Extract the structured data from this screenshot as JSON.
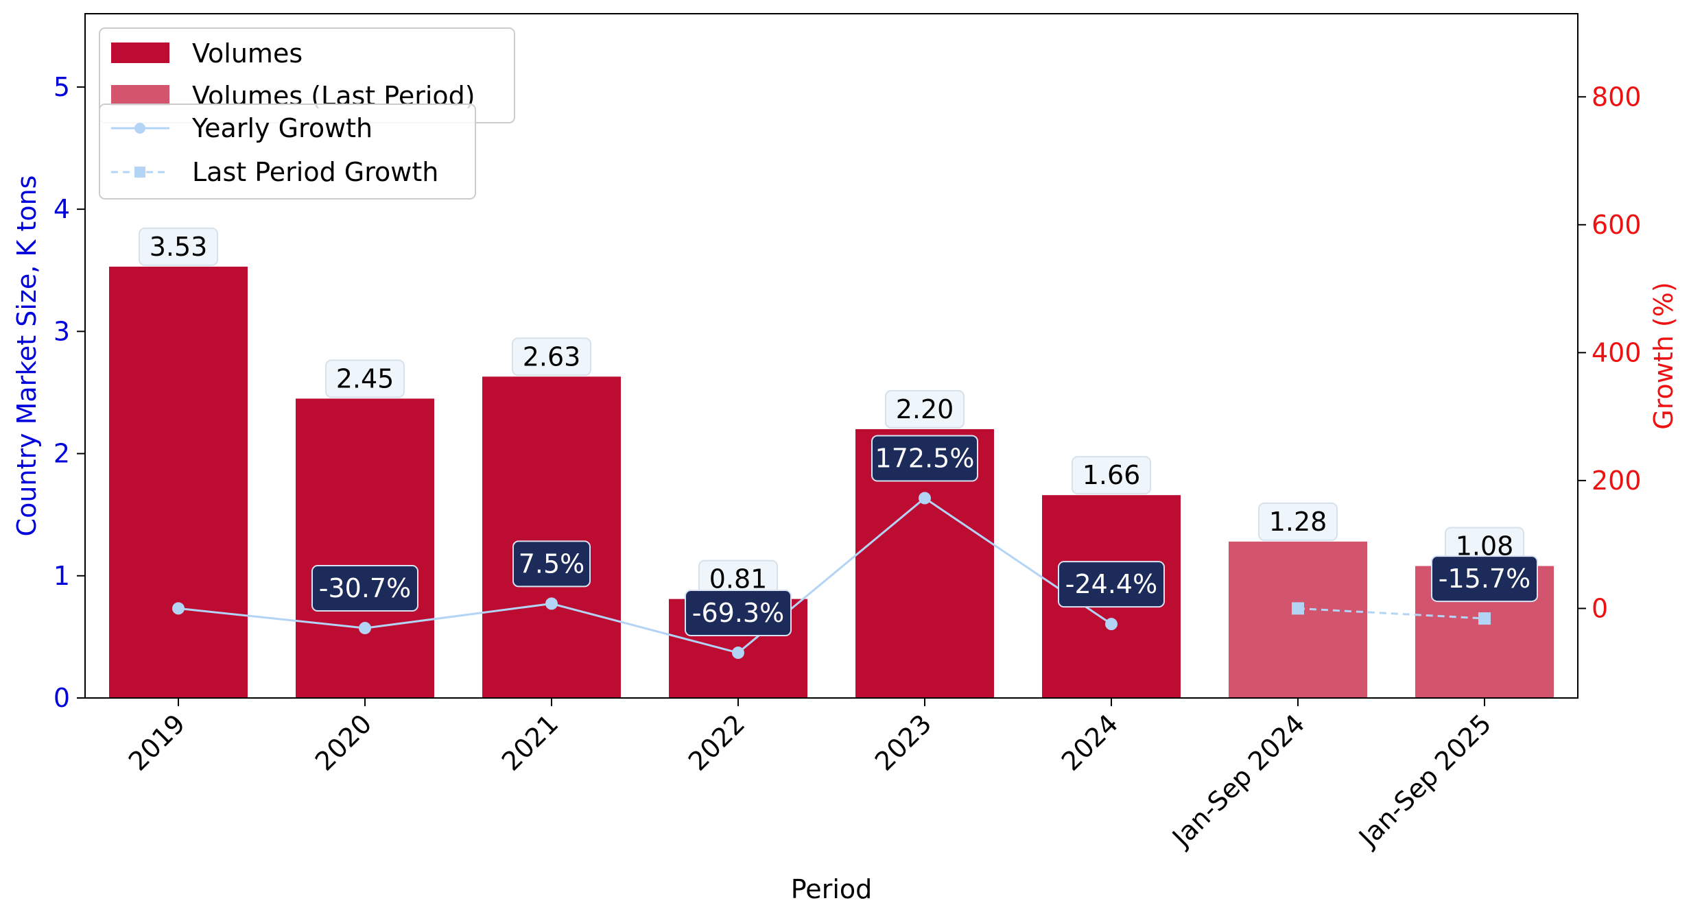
{
  "chart_data": {
    "type": "bar",
    "categories": [
      "2019",
      "2020",
      "2021",
      "2022",
      "2023",
      "2024",
      "Jan-Sep 2024",
      "Jan-Sep 2025"
    ],
    "xlabel": "Period",
    "ylabel_left": "Country Market Size, K tons",
    "ylabel_right": "Growth (%)",
    "ylim_left": [
      0,
      5.6
    ],
    "ylim_right": [
      -140,
      930
    ],
    "yticks_left": [
      "0",
      "1",
      "2",
      "3",
      "4",
      "5"
    ],
    "yticks_right": [
      "0",
      "200",
      "400",
      "600",
      "800"
    ],
    "grid": false,
    "series": [
      {
        "name": "Volumes",
        "kind": "bar",
        "color": "#bc0c31",
        "values": [
          3.53,
          2.45,
          2.63,
          0.81,
          2.2,
          1.66,
          null,
          null
        ],
        "labels": [
          "3.53",
          "2.45",
          "2.63",
          "0.81",
          "2.20",
          "1.66",
          "",
          ""
        ]
      },
      {
        "name": "Volumes (Last Period)",
        "kind": "bar",
        "color": "#d2556d",
        "values": [
          null,
          null,
          null,
          null,
          null,
          null,
          1.28,
          1.08
        ],
        "labels": [
          "",
          "",
          "",
          "",
          "",
          "",
          "1.28",
          "1.08"
        ]
      },
      {
        "name": "Yearly Growth",
        "kind": "line",
        "axis": "right",
        "color": "#b3d4f5",
        "values": [
          0,
          -30.7,
          7.5,
          -69.3,
          172.5,
          -24.4,
          null,
          null
        ],
        "labels": [
          "",
          "-30.7%",
          "7.5%",
          "-69.3%",
          "172.5%",
          "-24.4%",
          "",
          ""
        ]
      },
      {
        "name": "Last Period Growth",
        "kind": "line-dashed",
        "axis": "right",
        "color": "#b3d4f5",
        "values": [
          null,
          null,
          null,
          null,
          null,
          null,
          0,
          -15.7
        ],
        "labels": [
          "",
          "",
          "",
          "",
          "",
          "",
          "",
          "-15.7%"
        ]
      }
    ],
    "legend_placement": "top-left",
    "colors": {
      "left_axis": "#0000dd",
      "right_axis": "#ee1111",
      "growth_label_bg": "#1c2b5a",
      "value_label_bg": "#eef5fb"
    }
  }
}
